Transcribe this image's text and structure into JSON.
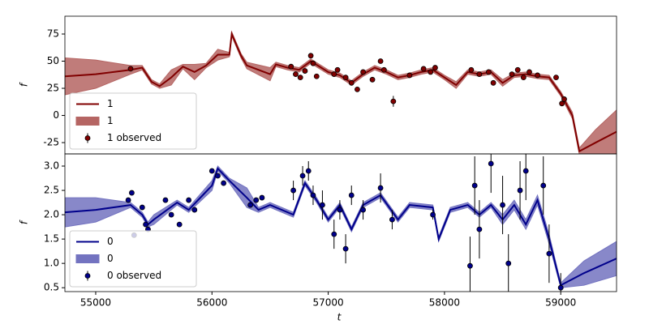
{
  "chart_data": [
    {
      "type": "line",
      "ylabel": "f",
      "legend": "lower left",
      "xlim": [
        54735,
        59480
      ],
      "ylim": [
        -35.4,
        91.4
      ],
      "yticks": [
        75,
        50,
        25,
        0,
        -25
      ],
      "series": [
        {
          "name": "1",
          "style": "line",
          "color": "#800000",
          "x": [
            54735,
            55000,
            55300,
            55400,
            55480,
            55550,
            55650,
            55750,
            55850,
            55950,
            56050,
            56150,
            56170,
            56250,
            56300,
            56500,
            56550,
            56650,
            56750,
            56850,
            57000,
            57100,
            57200,
            57300,
            57400,
            57500,
            57600,
            57700,
            57800,
            57900,
            58000,
            58100,
            58200,
            58300,
            58400,
            58500,
            58600,
            58700,
            58800,
            58900,
            59000,
            59100,
            59160,
            59300,
            59480
          ],
          "values": [
            36,
            38,
            42,
            44,
            31,
            27,
            35,
            45,
            40,
            46,
            56,
            56,
            75,
            55,
            46,
            38,
            47,
            44,
            42,
            50,
            40,
            37,
            30,
            38,
            44,
            40,
            35,
            37,
            40,
            42,
            35,
            28,
            40,
            38,
            40,
            30,
            37,
            38,
            36,
            35,
            20,
            0,
            -33,
            -25,
            -15
          ]
        },
        {
          "name": "1",
          "style": "band",
          "color": "#b56563",
          "x": [
            54735,
            55000,
            55300,
            55400,
            55480,
            55550,
            55650,
            55750,
            55850,
            55950,
            56050,
            56150,
            56170,
            56250,
            56300,
            56500,
            56550,
            56650,
            56750,
            56850,
            57000,
            57100,
            57200,
            57300,
            57400,
            57500,
            57600,
            57700,
            57800,
            57900,
            58000,
            58100,
            58200,
            58300,
            58400,
            58500,
            58600,
            58700,
            58800,
            58900,
            59000,
            59100,
            59160,
            59300,
            59480
          ],
          "lower": [
            19,
            25,
            38,
            42,
            29,
            25,
            28,
            43,
            33,
            44,
            51,
            54,
            73,
            53,
            43,
            32,
            45,
            42,
            40,
            48,
            38,
            35,
            28,
            36,
            42,
            38,
            33,
            35,
            38,
            40,
            33,
            25,
            38,
            36,
            38,
            27,
            35,
            36,
            34,
            33,
            18,
            -3,
            -36,
            -37,
            -35
          ],
          "upper": [
            53,
            51,
            46,
            46,
            33,
            29,
            42,
            47,
            47,
            48,
            61,
            58,
            77,
            57,
            49,
            44,
            49,
            46,
            44,
            52,
            42,
            39,
            32,
            40,
            46,
            42,
            37,
            39,
            42,
            44,
            37,
            31,
            42,
            40,
            42,
            33,
            39,
            40,
            38,
            37,
            22,
            3,
            -30,
            -13,
            5
          ]
        },
        {
          "name": "1 observed",
          "style": "errorbar",
          "color": "#800000",
          "x": [
            55300,
            56680,
            56720,
            56760,
            56800,
            56850,
            56870,
            56900,
            57050,
            57080,
            57150,
            57200,
            57250,
            57300,
            57380,
            57450,
            57480,
            57560,
            57700,
            57820,
            57880,
            57920,
            58230,
            58300,
            58380,
            58420,
            58580,
            58630,
            58680,
            58730,
            58800,
            58960,
            59010,
            59030
          ],
          "values": [
            43,
            45,
            38,
            35,
            41,
            55,
            48,
            36,
            38,
            42,
            35,
            30,
            24,
            40,
            33,
            50,
            42,
            13,
            37,
            43,
            40,
            44,
            42,
            38,
            40,
            30,
            38,
            42,
            35,
            40,
            37,
            35,
            11,
            15
          ],
          "errors": [
            2,
            2,
            2,
            2,
            2,
            2,
            2,
            2,
            2,
            2,
            2,
            2,
            2,
            2,
            2,
            2,
            2,
            5,
            2,
            2,
            2,
            2,
            2,
            2,
            2,
            2,
            2,
            2,
            2,
            2,
            2,
            2,
            2,
            2
          ]
        }
      ]
    },
    {
      "type": "line",
      "ylabel": "f",
      "xlabel": "t",
      "legend": "lower left",
      "xlim": [
        54735,
        59480
      ],
      "ylim": [
        0.42,
        3.25
      ],
      "xticks": [
        55000,
        56000,
        57000,
        58000,
        59000
      ],
      "yticks": [
        0.5,
        {
          "value": 1,
          "label": "1.0"
        },
        1.5,
        {
          "value": 2,
          "label": "2.0"
        },
        2.5,
        {
          "value": 3,
          "label": "3.0"
        }
      ],
      "series": [
        {
          "name": "0",
          "style": "line",
          "color": "#00008b",
          "x": [
            54735,
            55000,
            55300,
            55400,
            55450,
            55500,
            55700,
            55800,
            56000,
            56050,
            56150,
            56300,
            56400,
            56500,
            56700,
            56800,
            56900,
            57000,
            57100,
            57200,
            57300,
            57450,
            57600,
            57700,
            57900,
            57950,
            58050,
            58200,
            58300,
            58400,
            58500,
            58600,
            58700,
            58800,
            58900,
            59000,
            59200,
            59480
          ],
          "values": [
            2.05,
            2.1,
            2.2,
            2.0,
            1.8,
            1.9,
            2.25,
            2.1,
            2.6,
            2.95,
            2.7,
            2.35,
            2.1,
            2.2,
            2.0,
            2.65,
            2.3,
            1.9,
            2.2,
            1.7,
            2.2,
            2.4,
            1.9,
            2.2,
            2.15,
            1.5,
            2.1,
            2.2,
            2.0,
            2.2,
            1.9,
            2.2,
            1.8,
            2.3,
            1.5,
            0.55,
            0.8,
            1.1
          ]
        },
        {
          "name": "0",
          "style": "band",
          "color": "#7373c0",
          "x": [
            54735,
            55000,
            55300,
            55400,
            55450,
            55500,
            55700,
            55800,
            56000,
            56050,
            56150,
            56300,
            56400,
            56500,
            56700,
            56800,
            56900,
            57000,
            57100,
            57200,
            57300,
            57450,
            57600,
            57700,
            57900,
            57950,
            58050,
            58200,
            58300,
            58400,
            58500,
            58600,
            58700,
            58800,
            58900,
            59000,
            59200,
            59480
          ],
          "lower": [
            1.75,
            1.85,
            2.15,
            1.95,
            1.75,
            1.8,
            2.2,
            2.05,
            2.5,
            2.9,
            2.65,
            2.15,
            2.05,
            2.15,
            1.95,
            2.6,
            2.25,
            1.85,
            2.15,
            1.65,
            2.15,
            2.35,
            1.85,
            2.15,
            2.1,
            1.45,
            2.05,
            2.15,
            1.95,
            2.15,
            1.8,
            2.1,
            1.7,
            2.2,
            1.4,
            0.5,
            0.55,
            0.75
          ],
          "upper": [
            2.35,
            2.35,
            2.25,
            2.05,
            1.85,
            2.0,
            2.3,
            2.15,
            2.7,
            3.0,
            2.75,
            2.55,
            2.15,
            2.25,
            2.05,
            2.7,
            2.35,
            1.95,
            2.25,
            1.75,
            2.25,
            2.45,
            1.95,
            2.25,
            2.2,
            1.55,
            2.15,
            2.25,
            2.05,
            2.25,
            2.0,
            2.3,
            1.9,
            2.4,
            1.6,
            0.6,
            1.05,
            1.45
          ]
        },
        {
          "name": "0 observed",
          "style": "errorbar",
          "color": "#00008b",
          "x": [
            55280,
            55310,
            55330,
            55400,
            55430,
            55450,
            55600,
            55650,
            55720,
            55800,
            55850,
            56000,
            56050,
            56100,
            56330,
            56380,
            56430,
            56700,
            56780,
            56830,
            56870,
            56950,
            57050,
            57100,
            57150,
            57200,
            57300,
            57450,
            57550,
            57900,
            58220,
            58260,
            58300,
            58400,
            58500,
            58550,
            58650,
            58700,
            58850,
            58900,
            59000
          ],
          "values": [
            2.3,
            2.45,
            1.58,
            2.15,
            1.8,
            1.7,
            2.3,
            2.0,
            1.8,
            2.3,
            2.1,
            2.9,
            2.8,
            2.65,
            2.2,
            2.3,
            2.35,
            2.5,
            2.8,
            2.9,
            2.4,
            2.2,
            1.6,
            2.1,
            1.3,
            2.4,
            2.1,
            2.55,
            1.9,
            2.0,
            0.95,
            2.6,
            1.7,
            3.05,
            2.2,
            1.0,
            2.5,
            2.9,
            2.6,
            1.2,
            0.5
          ],
          "errors": [
            0.05,
            0.05,
            0.05,
            0.05,
            0.05,
            0.05,
            0.05,
            0.05,
            0.05,
            0.05,
            0.05,
            0.05,
            0.05,
            0.05,
            0.05,
            0.05,
            0.05,
            0.2,
            0.2,
            0.2,
            0.2,
            0.3,
            0.3,
            0.2,
            0.3,
            0.2,
            0.2,
            0.3,
            0.2,
            0.1,
            0.6,
            0.6,
            0.6,
            0.6,
            0.6,
            0.6,
            0.6,
            0.6,
            0.6,
            0.6,
            0.3
          ]
        }
      ]
    }
  ]
}
